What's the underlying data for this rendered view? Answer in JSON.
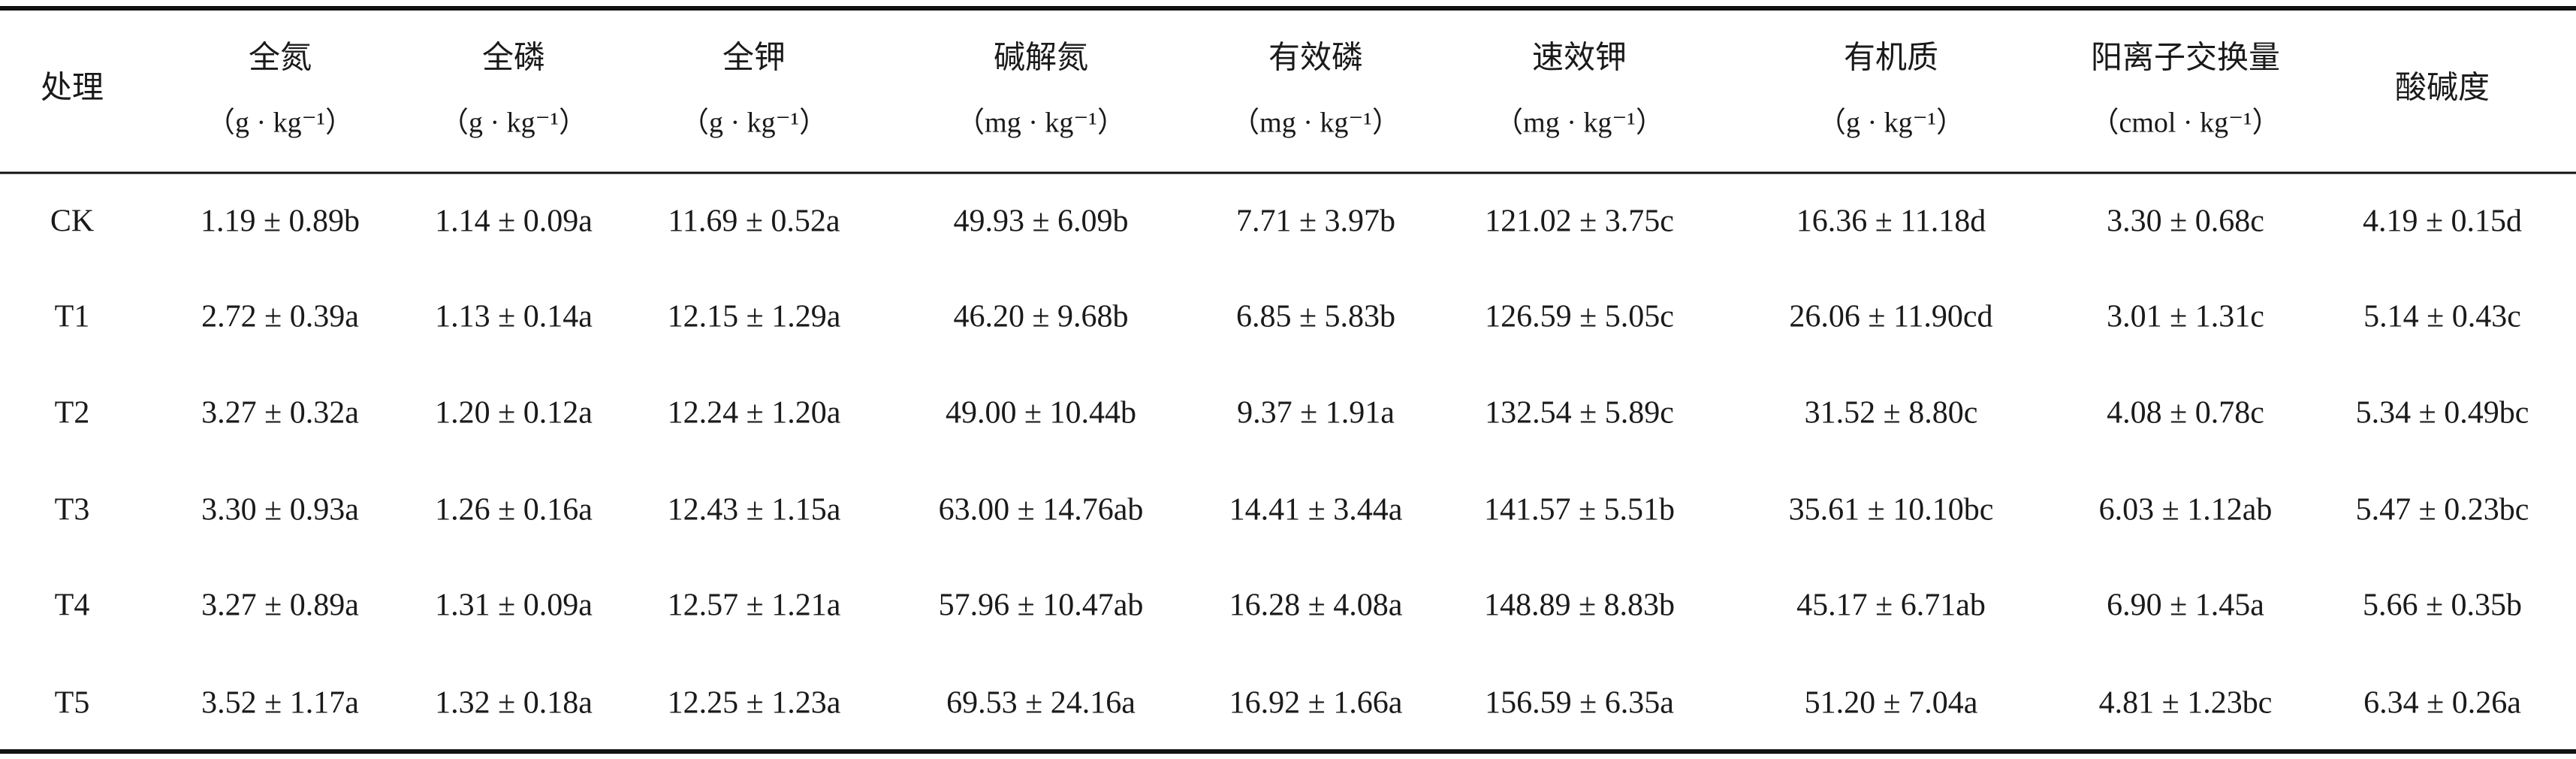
{
  "table": {
    "header": [
      {
        "name": "处理"
      },
      {
        "name": "全氮",
        "unit": "（g · kg⁻¹）"
      },
      {
        "name": "全磷",
        "unit": "（g · kg⁻¹）"
      },
      {
        "name": "全钾",
        "unit": "（g · kg⁻¹）"
      },
      {
        "name": "碱解氮",
        "unit": "（mg · kg⁻¹）"
      },
      {
        "name": "有效磷",
        "unit": "（mg · kg⁻¹）"
      },
      {
        "name": "速效钾",
        "unit": "（mg · kg⁻¹）"
      },
      {
        "name": "有机质",
        "unit": "（g · kg⁻¹）"
      },
      {
        "name": "阳离子交换量",
        "unit": "（cmol · kg⁻¹）"
      },
      {
        "name": "酸碱度"
      }
    ],
    "rows": [
      [
        "CK",
        "1.19 ± 0.89b",
        "1.14 ± 0.09a",
        "11.69 ± 0.52a",
        "49.93 ± 6.09b",
        "7.71 ± 3.97b",
        "121.02 ± 3.75c",
        "16.36 ± 11.18d",
        "3.30 ± 0.68c",
        "4.19 ± 0.15d"
      ],
      [
        "T1",
        "2.72 ± 0.39a",
        "1.13 ± 0.14a",
        "12.15 ± 1.29a",
        "46.20 ± 9.68b",
        "6.85 ± 5.83b",
        "126.59 ± 5.05c",
        "26.06 ± 11.90cd",
        "3.01 ± 1.31c",
        "5.14 ± 0.43c"
      ],
      [
        "T2",
        "3.27 ± 0.32a",
        "1.20 ± 0.12a",
        "12.24 ± 1.20a",
        "49.00 ± 10.44b",
        "9.37 ± 1.91a",
        "132.54 ± 5.89c",
        "31.52 ± 8.80c",
        "4.08 ± 0.78c",
        "5.34 ± 0.49bc"
      ],
      [
        "T3",
        "3.30 ± 0.93a",
        "1.26 ± 0.16a",
        "12.43 ± 1.15a",
        "63.00 ± 14.76ab",
        "14.41 ± 3.44a",
        "141.57 ± 5.51b",
        "35.61 ± 10.10bc",
        "6.03 ± 1.12ab",
        "5.47 ± 0.23bc"
      ],
      [
        "T4",
        "3.27 ± 0.89a",
        "1.31 ± 0.09a",
        "12.57 ± 1.21a",
        "57.96 ± 10.47ab",
        "16.28 ± 4.08a",
        "148.89 ± 8.83b",
        "45.17 ± 6.71ab",
        "6.90 ± 1.45a",
        "5.66 ± 0.35b"
      ],
      [
        "T5",
        "3.52 ± 1.17a",
        "1.32 ± 0.18a",
        "12.25 ± 1.23a",
        "69.53 ± 24.16a",
        "16.92 ± 1.66a",
        "156.59 ± 6.35a",
        "51.20 ± 7.04a",
        "4.81 ± 1.23bc",
        "6.34 ± 0.26a"
      ]
    ]
  }
}
